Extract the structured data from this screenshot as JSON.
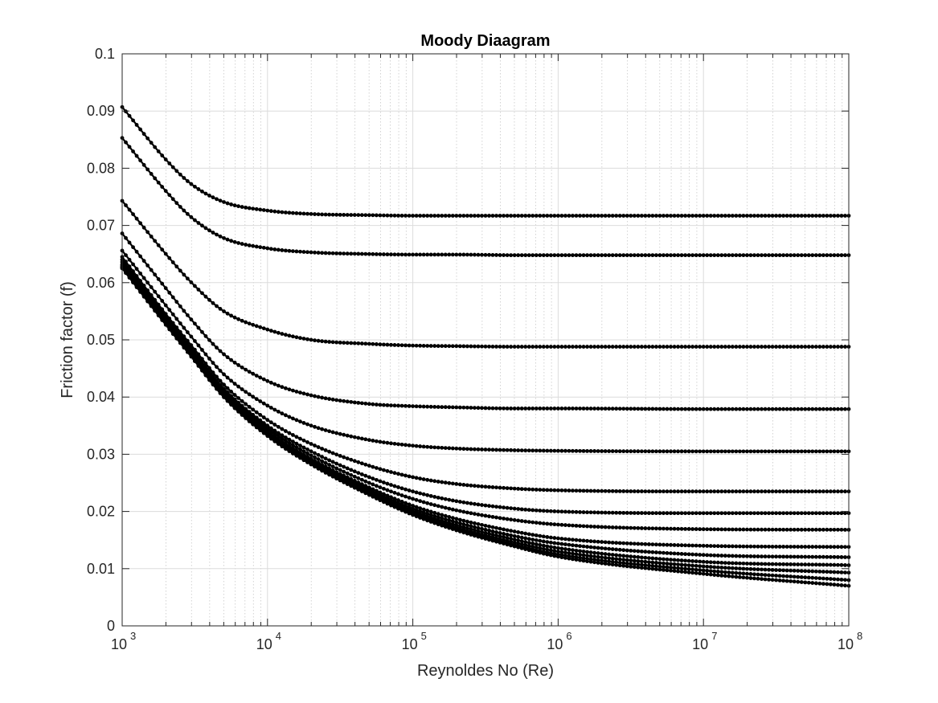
{
  "chart_data": {
    "type": "line",
    "title": "Moody Diaagram",
    "xlabel": "Reynoldes No (Re)",
    "ylabel": "Friction factor (f)",
    "xscale": "log",
    "xlim": [
      1000,
      100000000
    ],
    "ylim": [
      0,
      0.1
    ],
    "grid": true,
    "minor_grid_x": true,
    "marker": "dot",
    "line_color": "#000000",
    "x_ticks": [
      {
        "base": "10",
        "exp": "3"
      },
      {
        "base": "10",
        "exp": "4"
      },
      {
        "base": "10",
        "exp": "5"
      },
      {
        "base": "10",
        "exp": "6"
      },
      {
        "base": "10",
        "exp": "7"
      },
      {
        "base": "10",
        "exp": "8"
      }
    ],
    "y_ticks": [
      "0",
      "0.01",
      "0.02",
      "0.03",
      "0.04",
      "0.05",
      "0.06",
      "0.07",
      "0.08",
      "0.09",
      "0.1"
    ],
    "x": [
      1000,
      2000,
      3000,
      5000,
      10000,
      20000,
      50000,
      100000,
      200000,
      500000,
      1000000,
      10000000,
      100000000
    ],
    "series": [
      {
        "values": [
          0.0907,
          0.0815,
          0.0772,
          0.0741,
          0.0726,
          0.072,
          0.0718,
          0.0717,
          0.0717,
          0.0717,
          0.0717,
          0.0717,
          0.0717
        ]
      },
      {
        "values": [
          0.0853,
          0.076,
          0.0714,
          0.0678,
          0.066,
          0.0653,
          0.065,
          0.0649,
          0.0649,
          0.0648,
          0.0648,
          0.0648,
          0.0648
        ]
      },
      {
        "values": [
          0.0743,
          0.065,
          0.06,
          0.055,
          0.0518,
          0.05,
          0.0493,
          0.049,
          0.0489,
          0.0488,
          0.0488,
          0.0488,
          0.0488
        ]
      },
      {
        "values": [
          0.0686,
          0.059,
          0.0535,
          0.0475,
          0.0428,
          0.0403,
          0.0388,
          0.0384,
          0.0382,
          0.038,
          0.038,
          0.0379,
          0.0379
        ]
      },
      {
        "values": [
          0.0656,
          0.056,
          0.0505,
          0.044,
          0.0385,
          0.035,
          0.0325,
          0.0315,
          0.031,
          0.0307,
          0.0306,
          0.0305,
          0.0305
        ]
      },
      {
        "values": [
          0.0645,
          0.0545,
          0.049,
          0.0422,
          0.036,
          0.0318,
          0.028,
          0.026,
          0.0248,
          0.024,
          0.0237,
          0.0235,
          0.0235
        ]
      },
      {
        "values": [
          0.064,
          0.054,
          0.0484,
          0.0415,
          0.035,
          0.0305,
          0.026,
          0.0235,
          0.0218,
          0.0205,
          0.02,
          0.0197,
          0.0197
        ]
      },
      {
        "values": [
          0.0636,
          0.0537,
          0.0481,
          0.0411,
          0.0345,
          0.0298,
          0.025,
          0.0222,
          0.0202,
          0.0185,
          0.0177,
          0.0169,
          0.0168
        ]
      },
      {
        "values": [
          0.0632,
          0.0533,
          0.0477,
          0.0407,
          0.034,
          0.0292,
          0.0242,
          0.021,
          0.0187,
          0.0165,
          0.0153,
          0.014,
          0.0138
        ]
      },
      {
        "values": [
          0.063,
          0.0531,
          0.0475,
          0.0405,
          0.0338,
          0.0289,
          0.0238,
          0.0205,
          0.0181,
          0.0157,
          0.0144,
          0.0124,
          0.012
        ]
      },
      {
        "values": [
          0.0628,
          0.0529,
          0.0473,
          0.0403,
          0.0336,
          0.0286,
          0.0235,
          0.0201,
          0.0176,
          0.0151,
          0.0136,
          0.0112,
          0.0106
        ]
      },
      {
        "values": [
          0.0627,
          0.0528,
          0.0472,
          0.0402,
          0.0334,
          0.0284,
          0.0232,
          0.0198,
          0.0172,
          0.0146,
          0.013,
          0.0104,
          0.0093
        ]
      },
      {
        "values": [
          0.0626,
          0.0527,
          0.0471,
          0.0401,
          0.0333,
          0.0283,
          0.023,
          0.0196,
          0.0169,
          0.0142,
          0.0125,
          0.0097,
          0.008
        ]
      },
      {
        "values": [
          0.0625,
          0.0526,
          0.047,
          0.04,
          0.0332,
          0.0282,
          0.0229,
          0.0194,
          0.0167,
          0.0139,
          0.0121,
          0.0091,
          0.007
        ]
      }
    ]
  }
}
